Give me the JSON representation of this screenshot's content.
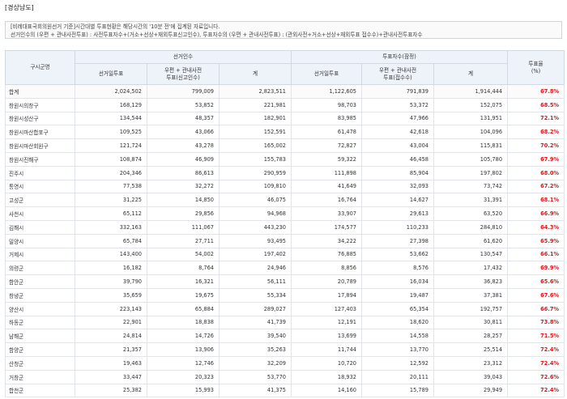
{
  "region": "[경상남도]",
  "notes": [
    "[비례대표국회의원선거 기준]시간대별 투표현황은 해당시간의 '10분 전'에 집계된 자료입니다.",
    "선거인수의 (우편 + 관내사전투표) : 사전투표자수+(거소+선상+재외투표신고인수), 투표자수의 (우편 + 관내사전투표) : (관외사전+거소+선상+재외투표 접수수)+관내사전투표자수"
  ],
  "headers": {
    "district": "구시군명",
    "electors_group": "선거인수",
    "voters_group": "투표자수(잠정)",
    "rate": "투표율\n(%)",
    "election_day": "선거일투표",
    "mail_early_electors": "우편 + 관내사전\n투표(신고인수)",
    "mail_early_voters": "우편 + 관내사전\n투표(접수수)",
    "total": "계"
  },
  "rows": [
    {
      "name": "합계",
      "e_day": "2,024,502",
      "e_mail": "799,009",
      "e_total": "2,823,511",
      "v_day": "1,122,605",
      "v_mail": "791,839",
      "v_total": "1,914,444",
      "rate": "67.8%"
    },
    {
      "name": "창원시의창구",
      "e_day": "168,129",
      "e_mail": "53,852",
      "e_total": "221,981",
      "v_day": "98,703",
      "v_mail": "53,372",
      "v_total": "152,075",
      "rate": "68.5%"
    },
    {
      "name": "창원시성산구",
      "e_day": "134,544",
      "e_mail": "48,357",
      "e_total": "182,901",
      "v_day": "83,985",
      "v_mail": "47,966",
      "v_total": "131,951",
      "rate": "72.1%"
    },
    {
      "name": "창원시마산합포구",
      "e_day": "109,525",
      "e_mail": "43,066",
      "e_total": "152,591",
      "v_day": "61,478",
      "v_mail": "42,618",
      "v_total": "104,096",
      "rate": "68.2%"
    },
    {
      "name": "창원시마산회원구",
      "e_day": "121,724",
      "e_mail": "43,278",
      "e_total": "165,002",
      "v_day": "72,827",
      "v_mail": "43,004",
      "v_total": "115,831",
      "rate": "70.2%"
    },
    {
      "name": "창원시진해구",
      "e_day": "108,874",
      "e_mail": "46,909",
      "e_total": "155,783",
      "v_day": "59,322",
      "v_mail": "46,458",
      "v_total": "105,780",
      "rate": "67.9%"
    },
    {
      "name": "진주시",
      "e_day": "204,346",
      "e_mail": "86,613",
      "e_total": "290,959",
      "v_day": "111,898",
      "v_mail": "85,904",
      "v_total": "197,802",
      "rate": "68.0%"
    },
    {
      "name": "통영시",
      "e_day": "77,538",
      "e_mail": "32,272",
      "e_total": "109,810",
      "v_day": "41,649",
      "v_mail": "32,093",
      "v_total": "73,742",
      "rate": "67.2%"
    },
    {
      "name": "고성군",
      "e_day": "31,225",
      "e_mail": "14,850",
      "e_total": "46,075",
      "v_day": "16,764",
      "v_mail": "14,627",
      "v_total": "31,391",
      "rate": "68.1%"
    },
    {
      "name": "사천시",
      "e_day": "65,112",
      "e_mail": "29,856",
      "e_total": "94,968",
      "v_day": "33,907",
      "v_mail": "29,613",
      "v_total": "63,520",
      "rate": "66.9%"
    },
    {
      "name": "김해시",
      "e_day": "332,163",
      "e_mail": "111,067",
      "e_total": "443,230",
      "v_day": "174,577",
      "v_mail": "110,233",
      "v_total": "284,810",
      "rate": "64.3%"
    },
    {
      "name": "밀양시",
      "e_day": "65,784",
      "e_mail": "27,711",
      "e_total": "93,495",
      "v_day": "34,222",
      "v_mail": "27,398",
      "v_total": "61,620",
      "rate": "65.9%"
    },
    {
      "name": "거제시",
      "e_day": "143,400",
      "e_mail": "54,002",
      "e_total": "197,402",
      "v_day": "76,885",
      "v_mail": "53,662",
      "v_total": "130,547",
      "rate": "66.1%"
    },
    {
      "name": "의령군",
      "e_day": "16,182",
      "e_mail": "8,764",
      "e_total": "24,946",
      "v_day": "8,856",
      "v_mail": "8,576",
      "v_total": "17,432",
      "rate": "69.9%"
    },
    {
      "name": "함안군",
      "e_day": "39,790",
      "e_mail": "16,321",
      "e_total": "56,111",
      "v_day": "20,789",
      "v_mail": "16,034",
      "v_total": "36,823",
      "rate": "65.6%"
    },
    {
      "name": "창녕군",
      "e_day": "35,659",
      "e_mail": "19,675",
      "e_total": "55,334",
      "v_day": "17,894",
      "v_mail": "19,487",
      "v_total": "37,381",
      "rate": "67.6%"
    },
    {
      "name": "양산시",
      "e_day": "223,143",
      "e_mail": "65,884",
      "e_total": "289,027",
      "v_day": "127,403",
      "v_mail": "65,354",
      "v_total": "192,757",
      "rate": "66.7%"
    },
    {
      "name": "하동군",
      "e_day": "22,901",
      "e_mail": "18,838",
      "e_total": "41,739",
      "v_day": "12,191",
      "v_mail": "18,620",
      "v_total": "30,811",
      "rate": "73.8%"
    },
    {
      "name": "남해군",
      "e_day": "24,814",
      "e_mail": "14,726",
      "e_total": "39,540",
      "v_day": "13,699",
      "v_mail": "14,558",
      "v_total": "28,257",
      "rate": "71.5%"
    },
    {
      "name": "함양군",
      "e_day": "21,357",
      "e_mail": "13,906",
      "e_total": "35,263",
      "v_day": "11,744",
      "v_mail": "13,770",
      "v_total": "25,514",
      "rate": "72.4%"
    },
    {
      "name": "산청군",
      "e_day": "19,463",
      "e_mail": "12,746",
      "e_total": "32,209",
      "v_day": "10,720",
      "v_mail": "12,592",
      "v_total": "23,312",
      "rate": "72.4%"
    },
    {
      "name": "거창군",
      "e_day": "33,447",
      "e_mail": "20,323",
      "e_total": "53,770",
      "v_day": "18,932",
      "v_mail": "20,111",
      "v_total": "39,043",
      "rate": "72.6%"
    },
    {
      "name": "합천군",
      "e_day": "25,382",
      "e_mail": "15,993",
      "e_total": "41,375",
      "v_day": "14,160",
      "v_mail": "15,789",
      "v_total": "29,949",
      "rate": "72.4%"
    }
  ],
  "colors": {
    "rate_text": "#e0161b",
    "header_bg": "#eef3f9",
    "border": "#e1e5ea"
  }
}
